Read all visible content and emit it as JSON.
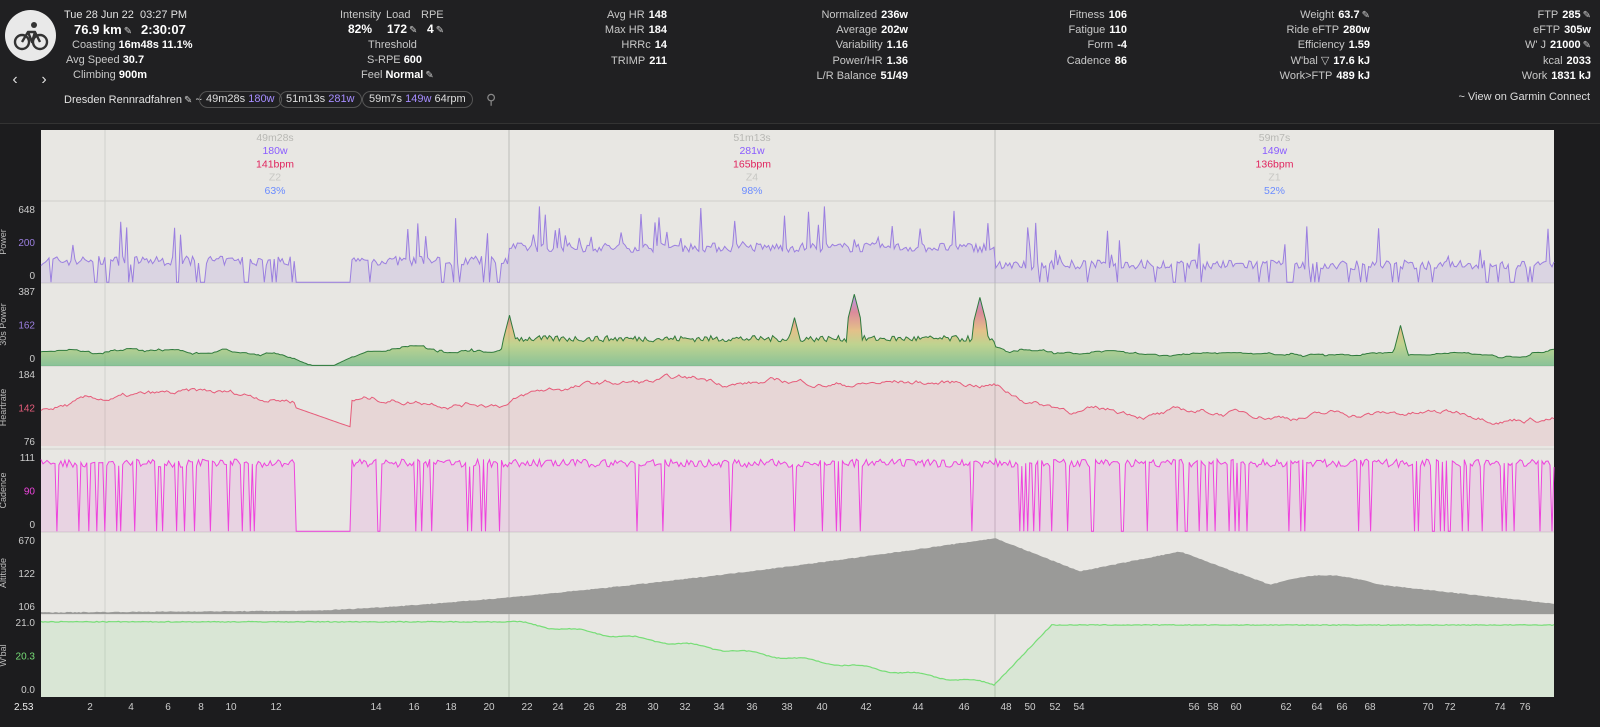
{
  "activity": {
    "date": "Tue 28 Jun 22",
    "time": "03:27 PM",
    "distance": "76.9 km",
    "duration": "2:30:07",
    "coasting_label": "Coasting",
    "coasting_time": "16m48s",
    "coasting_pct": "11.1%",
    "avg_speed_label": "Avg Speed",
    "avg_speed": "30.7",
    "climbing_label": "Climbing",
    "climbing": "900m",
    "name": "Dresden Rennradfahren",
    "name_suffix": "~"
  },
  "intensity": {
    "intensity_label": "Intensity",
    "intensity": "82%",
    "load_label": "Load",
    "load": "172",
    "rpe_label": "RPE",
    "rpe": "4",
    "threshold_label": "Threshold",
    "srpe_label": "S-RPE",
    "srpe": "600",
    "feel_label": "Feel",
    "feel": "Normal"
  },
  "hr": [
    {
      "label": "Avg HR",
      "value": "148"
    },
    {
      "label": "Max HR",
      "value": "184"
    },
    {
      "label": "HRRc",
      "value": "14"
    },
    {
      "label": "TRIMP",
      "value": "211"
    }
  ],
  "power": [
    {
      "label": "Normalized",
      "value": "236w"
    },
    {
      "label": "Average",
      "value": "202w"
    },
    {
      "label": "Variability",
      "value": "1.16"
    },
    {
      "label": "Power/HR",
      "value": "1.36"
    },
    {
      "label": "L/R Balance",
      "value": "51/49"
    }
  ],
  "fitness": [
    {
      "label": "Fitness",
      "value": "106"
    },
    {
      "label": "Fatigue",
      "value": "110"
    },
    {
      "label": "Form",
      "value": "-4"
    },
    {
      "label": "Cadence",
      "value": "86"
    }
  ],
  "weight": [
    {
      "label": "Weight",
      "value": "63.7"
    },
    {
      "label": "Ride eFTP",
      "value": "280w"
    },
    {
      "label": "Efficiency",
      "value": "1.59"
    },
    {
      "label": "W'bal ▽",
      "value": "17.6 kJ"
    },
    {
      "label": "Work>FTP",
      "value": "489 kJ"
    }
  ],
  "ftp": [
    {
      "label": "FTP",
      "value": "285"
    },
    {
      "label": "eFTP",
      "value": "305w"
    },
    {
      "label": "W' J",
      "value": "21000"
    },
    {
      "label": "kcal",
      "value": "2033"
    },
    {
      "label": "Work",
      "value": "1831 kJ"
    }
  ],
  "intervals": [
    {
      "time": "49m28s",
      "power": "180w",
      "extra": ""
    },
    {
      "time": "51m13s",
      "power": "281w",
      "extra": ""
    },
    {
      "time": "59m7s",
      "power": "149w",
      "extra": "64rpm"
    }
  ],
  "garmin_link": "~ View on Garmin Connect",
  "colors": {
    "power": "#9b7fe0",
    "heartrate": "#e65c7a",
    "cadence": "#ee44dd",
    "altitude": "#9a9a98",
    "wbal": "#77dd77"
  },
  "segments": [
    {
      "time": "49m28s",
      "power": "180w",
      "hr": "141bpm",
      "zone": "Z2",
      "pct": "63%"
    },
    {
      "time": "51m13s",
      "power": "281w",
      "hr": "165bpm",
      "zone": "Z4",
      "pct": "98%"
    },
    {
      "time": "59m7s",
      "power": "149w",
      "hr": "136bpm",
      "zone": "Z1",
      "pct": "52%"
    }
  ],
  "charts": [
    {
      "title": "Power",
      "ticks": [
        "648",
        "200",
        "0"
      ]
    },
    {
      "title": "30s Power",
      "ticks": [
        "387",
        "162",
        "0"
      ]
    },
    {
      "title": "Heartrate",
      "ticks": [
        "184",
        "142",
        "76"
      ]
    },
    {
      "title": "Cadence",
      "ticks": [
        "111",
        "90",
        "0"
      ]
    },
    {
      "title": "Altitude",
      "ticks": [
        "670",
        "122",
        "106"
      ]
    },
    {
      "title": "W'bal",
      "ticks": [
        "21.0",
        "20.3",
        "0.0"
      ]
    }
  ],
  "x_axis": {
    "start_label": "2.53",
    "ticks": [
      "2",
      "4",
      "6",
      "8",
      "10",
      "12",
      "14",
      "16",
      "18",
      "20",
      "22",
      "24",
      "26",
      "28",
      "30",
      "32",
      "34",
      "36",
      "38",
      "40",
      "42",
      "44",
      "46",
      "48",
      "50",
      "52",
      "54",
      "56",
      "58",
      "60",
      "62",
      "64",
      "66",
      "68",
      "70",
      "72",
      "74",
      "76"
    ]
  }
}
